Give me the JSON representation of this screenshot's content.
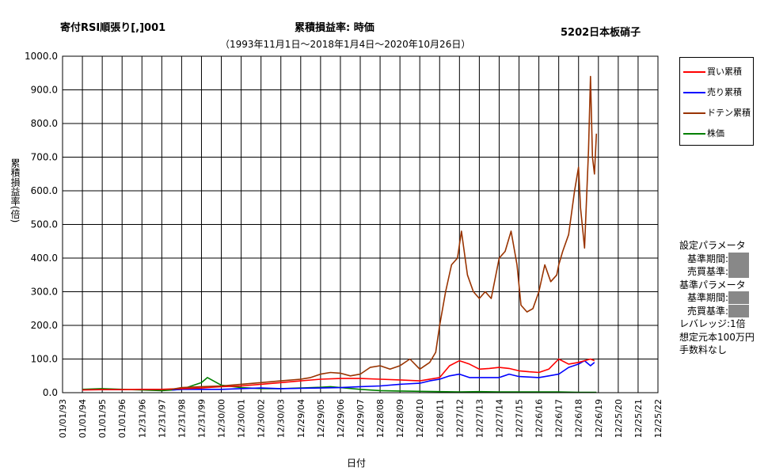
{
  "chart_data": {
    "type": "line",
    "title_left": "寄付RSI順張り[,]001",
    "title": "累積損益率:  時価",
    "title_right": "5202日本板硝子",
    "subtitle": "（1993年11月1日～2018年1月4日～2020年10月26日）",
    "xlabel": "日付",
    "ylabel": "累積損益率(倍)",
    "ylim": [
      0,
      1000
    ],
    "ytick_labels": [
      "0.0",
      "100.0",
      "200.0",
      "300.0",
      "400.0",
      "500.0",
      "600.0",
      "700.0",
      "800.0",
      "900.0",
      "1000.0"
    ],
    "xtick_labels": [
      "01/01/93",
      "01/01/94",
      "01/01/95",
      "01/01/96",
      "12/31/96",
      "12/31/97",
      "12/31/98",
      "12/31/99",
      "12/30/00",
      "12/30/01",
      "12/30/02",
      "12/30/03",
      "12/29/04",
      "12/29/05",
      "12/29/06",
      "12/29/07",
      "12/28/08",
      "12/28/09",
      "12/28/10",
      "12/28/11",
      "12/27/12",
      "12/27/13",
      "12/27/14",
      "12/27/15",
      "12/26/16",
      "12/26/17",
      "12/26/18",
      "12/26/19",
      "12/25/20",
      "12/25/21",
      "12/25/22"
    ],
    "x_unit": "year",
    "grid": true,
    "legend_position": "right",
    "series": [
      {
        "name": "買い累積",
        "color": "#ff0000",
        "x": [
          1994.0,
          1995.0,
          1996.0,
          1997.0,
          1998.0,
          1998.5,
          1999.0,
          2000.0,
          2000.5,
          2001.0,
          2002.0,
          2003.0,
          2004.0,
          2005.0,
          2006.0,
          2007.0,
          2008.0,
          2009.0,
          2010.0,
          2011.0,
          2012.0,
          2012.5,
          2013.0,
          2013.5,
          2014.0,
          2014.5,
          2015.0,
          2015.5,
          2016.0,
          2016.5,
          2017.0,
          2017.5,
          2018.0,
          2018.5,
          2019.0,
          2019.3,
          2019.6,
          2019.8
        ],
        "y": [
          8,
          9,
          9,
          10,
          10,
          11,
          12,
          14,
          16,
          18,
          20,
          25,
          30,
          35,
          40,
          42,
          42,
          40,
          38,
          35,
          45,
          80,
          95,
          85,
          70,
          72,
          75,
          72,
          65,
          62,
          60,
          70,
          100,
          85,
          90,
          95,
          100,
          95
        ]
      },
      {
        "name": "売り累積",
        "color": "#0000ff",
        "x": [
          1998.5,
          1999.0,
          2000.0,
          2001.0,
          2002.0,
          2003.0,
          2004.0,
          2005.0,
          2006.0,
          2007.0,
          2008.0,
          2009.0,
          2010.0,
          2011.0,
          2011.5,
          2012.0,
          2012.5,
          2013.0,
          2013.5,
          2014.0,
          2015.0,
          2015.5,
          2016.0,
          2017.0,
          2017.5,
          2018.0,
          2018.5,
          2019.0,
          2019.3,
          2019.6,
          2019.8
        ],
        "y": [
          8,
          10,
          10,
          10,
          12,
          14,
          12,
          13,
          14,
          15,
          18,
          20,
          25,
          28,
          35,
          40,
          50,
          55,
          45,
          45,
          45,
          55,
          48,
          45,
          50,
          55,
          75,
          85,
          95,
          80,
          90
        ]
      },
      {
        "name": "ドテン累積",
        "color": "#993300",
        "x": [
          1998.5,
          1999.0,
          2000.0,
          2001.0,
          2002.0,
          2003.0,
          2004.0,
          2005.0,
          2005.5,
          2006.0,
          2006.5,
          2007.0,
          2007.5,
          2008.0,
          2008.5,
          2009.0,
          2009.5,
          2010.0,
          2010.5,
          2011.0,
          2011.5,
          2011.8,
          2012.0,
          2012.3,
          2012.6,
          2012.9,
          2013.1,
          2013.4,
          2013.7,
          2014.0,
          2014.3,
          2014.6,
          2015.0,
          2015.3,
          2015.6,
          2015.9,
          2016.1,
          2016.4,
          2016.7,
          2017.0,
          2017.3,
          2017.6,
          2017.9,
          2018.0,
          2018.2,
          2018.5,
          2018.8,
          2019.0,
          2019.1,
          2019.3,
          2019.5,
          2019.6,
          2019.7,
          2019.8,
          2019.9
        ],
        "y": [
          10,
          15,
          18,
          20,
          25,
          30,
          35,
          40,
          45,
          55,
          60,
          58,
          50,
          55,
          75,
          80,
          70,
          80,
          100,
          70,
          90,
          120,
          200,
          300,
          380,
          400,
          480,
          350,
          300,
          280,
          300,
          280,
          400,
          420,
          480,
          380,
          260,
          240,
          250,
          300,
          380,
          330,
          350,
          380,
          420,
          470,
          600,
          670,
          550,
          430,
          720,
          940,
          700,
          650,
          770
        ]
      },
      {
        "name": "株価",
        "color": "#008000",
        "x": [
          1994.0,
          1995.0,
          1996.0,
          1997.0,
          1998.0,
          1999.0,
          1999.5,
          2000.0,
          2000.3,
          2000.6,
          2001.0,
          2002.0,
          2003.0,
          2004.0,
          2005.0,
          2006.0,
          2006.5,
          2007.0,
          2008.0,
          2009.0,
          2010.0,
          2011.0,
          2012.0,
          2013.0,
          2014.0,
          2015.0,
          2016.0,
          2017.0,
          2018.0,
          2019.0,
          2019.9
        ],
        "y": [
          10,
          12,
          10,
          8,
          6,
          10,
          20,
          30,
          45,
          35,
          22,
          15,
          12,
          12,
          14,
          16,
          18,
          15,
          10,
          6,
          5,
          4,
          3,
          2,
          3,
          2,
          2,
          2,
          2,
          1,
          1
        ]
      }
    ]
  },
  "params": {
    "header1": "設定パラメータ",
    "p1": "基準期間:",
    "p2": "売買基準:",
    "header2": "基準パラメータ",
    "p3": "基準期間:",
    "p4": "売買基準:",
    "leverage": "レバレッジ:1倍",
    "capital": "想定元本100万円",
    "fee": "手数料なし"
  }
}
